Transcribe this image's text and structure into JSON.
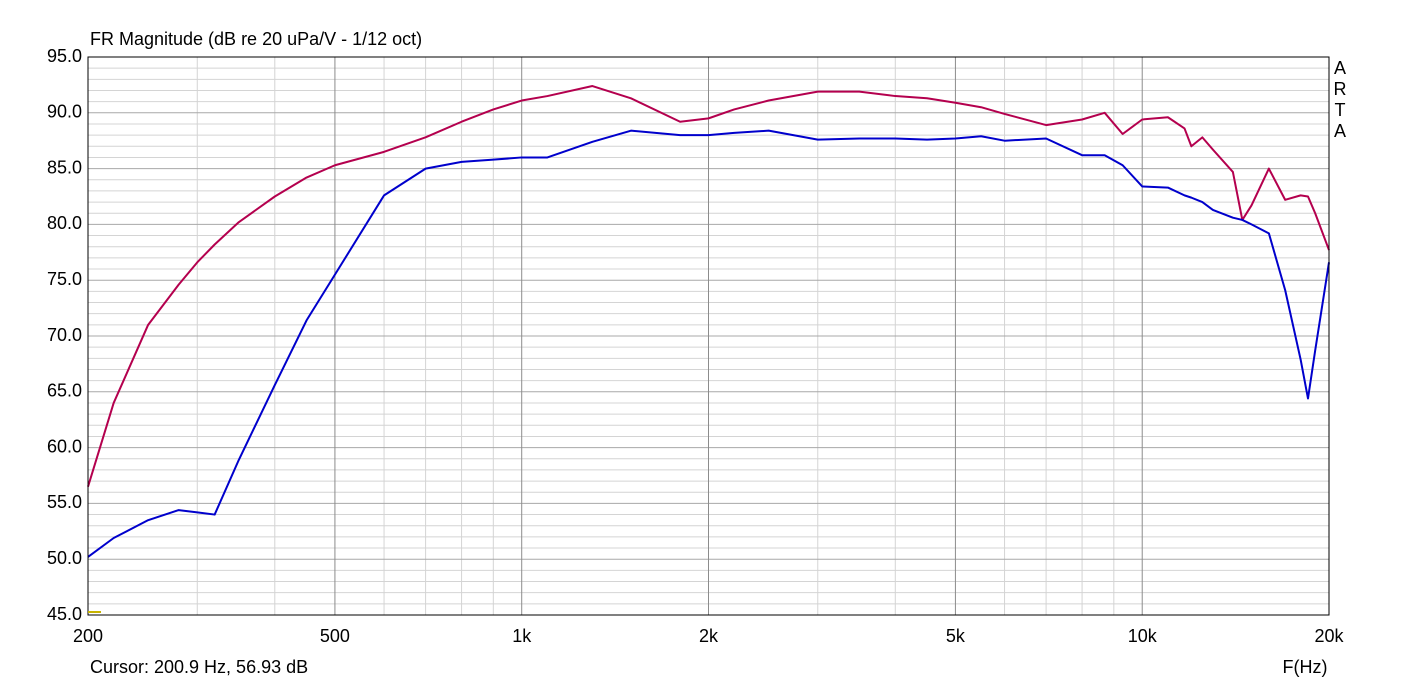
{
  "chart_data": {
    "type": "line",
    "title": "FR Magnitude (dB re 20 uPa/V - 1/12 oct)",
    "x_label": "F(Hz)",
    "cursor": "Cursor: 200.9 Hz, 56.93 dB",
    "brand": "ARTA",
    "xscale": "log",
    "grid": true,
    "xlim": [
      200,
      20000
    ],
    "ylim": [
      45,
      95
    ],
    "xticks": [
      200,
      500,
      {
        "value": 1000,
        "label": "1k"
      },
      {
        "value": 2000,
        "label": "2k"
      },
      {
        "value": 5000,
        "label": "5k"
      },
      {
        "value": 10000,
        "label": "10k"
      },
      {
        "value": 20000,
        "label": "20k"
      }
    ],
    "yticks": [
      {
        "value": 45,
        "label": "45.0"
      },
      {
        "value": 50,
        "label": "50.0"
      },
      {
        "value": 55,
        "label": "55.0"
      },
      {
        "value": 60,
        "label": "60.0"
      },
      {
        "value": 65,
        "label": "65.0"
      },
      {
        "value": 70,
        "label": "70.0"
      },
      {
        "value": 75,
        "label": "75.0"
      },
      {
        "value": 80,
        "label": "80.0"
      },
      {
        "value": 85,
        "label": "85.0"
      },
      {
        "value": 90,
        "label": "90.0"
      },
      {
        "value": 95,
        "label": "95.0"
      }
    ],
    "x_minor_ticks": [
      300,
      400,
      600,
      700,
      800,
      900,
      3000,
      4000,
      6000,
      7000,
      8000,
      9000
    ],
    "y_minor_ticks": [
      46,
      47,
      48,
      49,
      51,
      52,
      53,
      54,
      56,
      57,
      58,
      59,
      61,
      62,
      63,
      64,
      66,
      67,
      68,
      69,
      71,
      72,
      73,
      74,
      76,
      77,
      78,
      79,
      81,
      82,
      83,
      84,
      86,
      87,
      88,
      89,
      91,
      92,
      93,
      94
    ],
    "x": [
      200,
      220,
      250,
      280,
      300,
      320,
      350,
      400,
      450,
      500,
      600,
      700,
      800,
      900,
      1000,
      1100,
      1300,
      1500,
      1800,
      2000,
      2200,
      2500,
      3000,
      3500,
      4000,
      4500,
      5000,
      5500,
      6000,
      7000,
      8000,
      8700,
      9300,
      10000,
      11000,
      11700,
      12000,
      12500,
      13000,
      14000,
      14500,
      15000,
      16000,
      17000,
      18000,
      18500,
      19000,
      20000
    ],
    "series": [
      {
        "color": "#b4004e",
        "values": [
          56.5,
          64.0,
          71.0,
          74.6,
          76.6,
          78.2,
          80.2,
          82.5,
          84.2,
          85.3,
          86.5,
          87.8,
          89.2,
          90.3,
          91.1,
          91.5,
          92.4,
          91.3,
          89.2,
          89.5,
          90.3,
          91.1,
          91.9,
          91.9,
          91.5,
          91.3,
          90.9,
          90.5,
          89.9,
          88.9,
          89.4,
          90.0,
          88.1,
          89.4,
          89.6,
          88.6,
          87.0,
          87.8,
          86.7,
          84.7,
          80.4,
          81.7,
          85.0,
          82.2,
          82.6,
          82.5,
          81.0,
          77.7
        ]
      },
      {
        "color": "#0000cc",
        "values": [
          50.2,
          51.9,
          53.5,
          54.4,
          54.2,
          54.0,
          58.9,
          65.6,
          71.4,
          75.5,
          82.6,
          85.0,
          85.6,
          85.8,
          86.0,
          86.0,
          87.4,
          88.4,
          88.0,
          88.0,
          88.2,
          88.4,
          87.6,
          87.7,
          87.7,
          87.6,
          87.7,
          87.9,
          87.5,
          87.7,
          86.2,
          86.2,
          85.3,
          83.4,
          83.3,
          82.6,
          82.4,
          82.0,
          81.3,
          80.6,
          80.4,
          80.0,
          79.2,
          74.1,
          67.9,
          64.4,
          68.7,
          76.6
        ]
      }
    ]
  }
}
